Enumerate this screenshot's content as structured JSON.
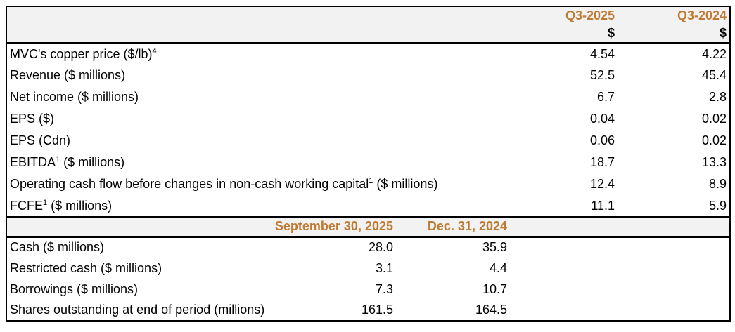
{
  "colors": {
    "accent_header_text": "#BF7B33",
    "header_band_bg": "#F2F2F2",
    "border": "#000000",
    "body_text": "#000000"
  },
  "quarter_section": {
    "headers": {
      "col1_period": "Q3-2025",
      "col1_unit": "$",
      "col2_period": "Q3-2024",
      "col2_unit": "$"
    },
    "rows": [
      {
        "pre": "MVC's copper price ($/lb)",
        "sup": "4",
        "post": "",
        "v1": "4.54",
        "v2": "4.22"
      },
      {
        "pre": "Revenue ($ millions)",
        "sup": "",
        "post": "",
        "v1": "52.5",
        "v2": "45.4"
      },
      {
        "pre": "Net income ($ millions)",
        "sup": "",
        "post": "",
        "v1": "6.7",
        "v2": "2.8"
      },
      {
        "pre": "EPS ($)",
        "sup": "",
        "post": "",
        "v1": "0.04",
        "v2": "0.02"
      },
      {
        "pre": "EPS (Cdn)",
        "sup": "",
        "post": "",
        "v1": "0.06",
        "v2": "0.02"
      },
      {
        "pre": "EBITDA",
        "sup": "1",
        "post": " ($ millions)",
        "v1": "18.7",
        "v2": "13.3"
      },
      {
        "pre": "Operating cash flow before changes in non-cash working capital",
        "sup": "1",
        "post": " ($ millions)",
        "v1": "12.4",
        "v2": "8.9"
      },
      {
        "pre": "FCFE",
        "sup": "1",
        "post": " ($ millions)",
        "v1": "11.1",
        "v2": "5.9"
      }
    ]
  },
  "balance_section": {
    "headers": {
      "col1": "September 30, 2025",
      "col2": "Dec. 31, 2024"
    },
    "rows": [
      {
        "label": "Cash ($ millions)",
        "v1": "28.0",
        "v2": "35.9"
      },
      {
        "label": "Restricted cash ($ millions)",
        "v1": "3.1",
        "v2": "4.4"
      },
      {
        "label": "Borrowings ($ millions)",
        "v1": "7.3",
        "v2": "10.7"
      },
      {
        "label": "Shares outstanding at end of period (millions)",
        "v1": "161.5",
        "v2": "164.5"
      }
    ]
  }
}
